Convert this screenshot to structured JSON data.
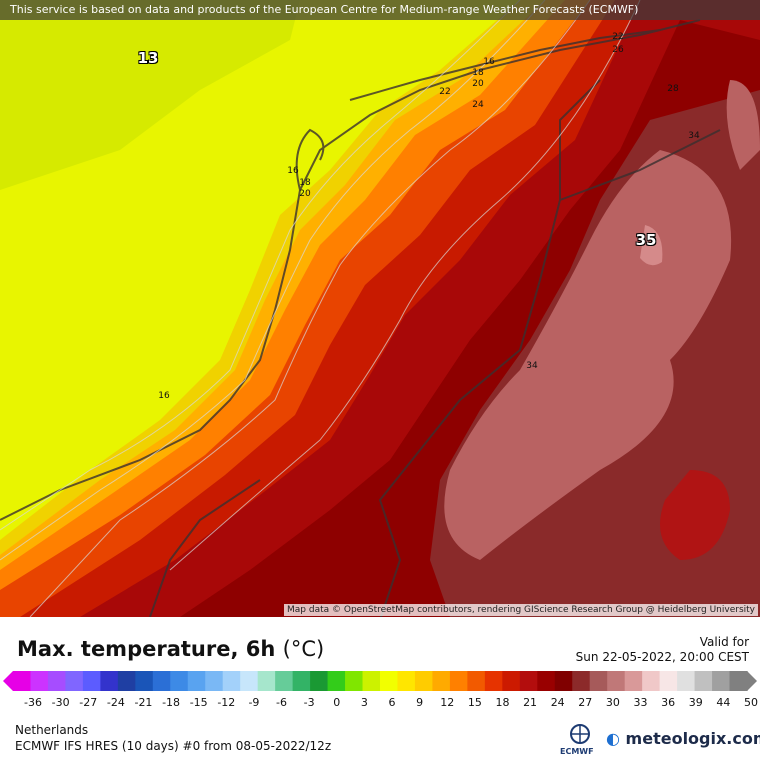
{
  "banner": "This service is based on data and products of the European Centre for Medium-range Weather Forecasts (ECMWF)",
  "attribution": "Map data © OpenStreetMap contributors, rendering GIScience Research Group @ Heidelberg University",
  "map_labels": {
    "max_sea": "13",
    "max_land": "35",
    "c16a": "16",
    "c18a": "18",
    "c20a": "20",
    "c22a": "22",
    "c24a": "24",
    "c22b": "22",
    "c26b": "26",
    "c28b": "28",
    "c16b": "16",
    "c18b": "18",
    "c20b": "20",
    "c16c": "16",
    "c34a": "34",
    "c34b": "34"
  },
  "title": "Max. temperature, 6h",
  "unit": "(°C)",
  "valid_label": "Valid for",
  "valid_time": "Sun 22-05-2022, 20:00 CEST",
  "scale_ticks": [
    "-36",
    "-30",
    "-27",
    "-24",
    "-21",
    "-18",
    "-15",
    "-12",
    "-9",
    "-6",
    "-3",
    "0",
    "3",
    "6",
    "9",
    "12",
    "15",
    "18",
    "21",
    "24",
    "27",
    "30",
    "33",
    "36",
    "39",
    "44",
    "50"
  ],
  "scale_colors": [
    "#e600e6",
    "#cc33ff",
    "#a64dff",
    "#8066ff",
    "#5c5cff",
    "#3333cc",
    "#1f3fa3",
    "#1a55b8",
    "#2b6fd6",
    "#3d8ae6",
    "#59a3f0",
    "#7ab8f5",
    "#a3d1fa",
    "#c7e6fb",
    "#a6e6cc",
    "#66cc99",
    "#33b366",
    "#1a9933",
    "#33cc1a",
    "#80e600",
    "#ccf200",
    "#f2ff00",
    "#ffe600",
    "#ffcc00",
    "#ffaa00",
    "#ff8000",
    "#f25a00",
    "#e63300",
    "#cc1a00",
    "#b30d0d",
    "#990000",
    "#800000",
    "#8c2a2a",
    "#a65a5a",
    "#c07878",
    "#d99999",
    "#f0c8c8",
    "#f7e6e6",
    "#e0e0e0",
    "#c0c0c0",
    "#a0a0a0",
    "#808080"
  ],
  "region": "Netherlands",
  "model": "ECMWF IFS HRES (10 days) #0 from 08-05-2022/12z",
  "ecmwf_logo": "ECMWF",
  "brand": "meteologix.com"
}
